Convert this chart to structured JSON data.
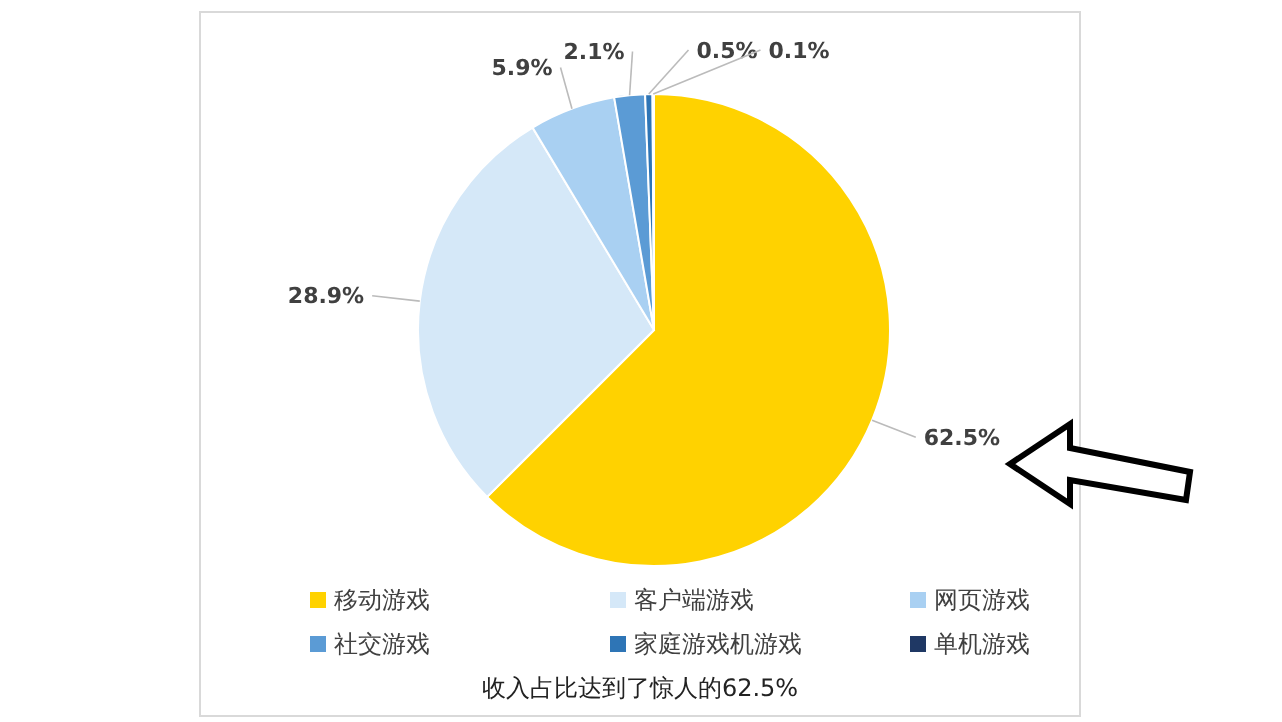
{
  "chart_data": {
    "type": "pie",
    "categories": [
      "移动游戏",
      "客户端游戏",
      "网页游戏",
      "社交游戏",
      "家庭游戏机游戏",
      "单机游戏"
    ],
    "values": [
      62.5,
      28.9,
      5.9,
      2.1,
      0.5,
      0.1
    ],
    "colors": [
      "#ffd200",
      "#d5e8f8",
      "#a9d0f2",
      "#5b9bd5",
      "#2e75b6",
      "#1f3864"
    ],
    "value_labels": [
      "62.5%",
      "28.9%",
      "5.9%",
      "2.1%",
      "0.5%",
      "0.1%"
    ],
    "legend": "bottom",
    "annotations": [
      "收入占比达到了惊人的62.5%"
    ]
  }
}
